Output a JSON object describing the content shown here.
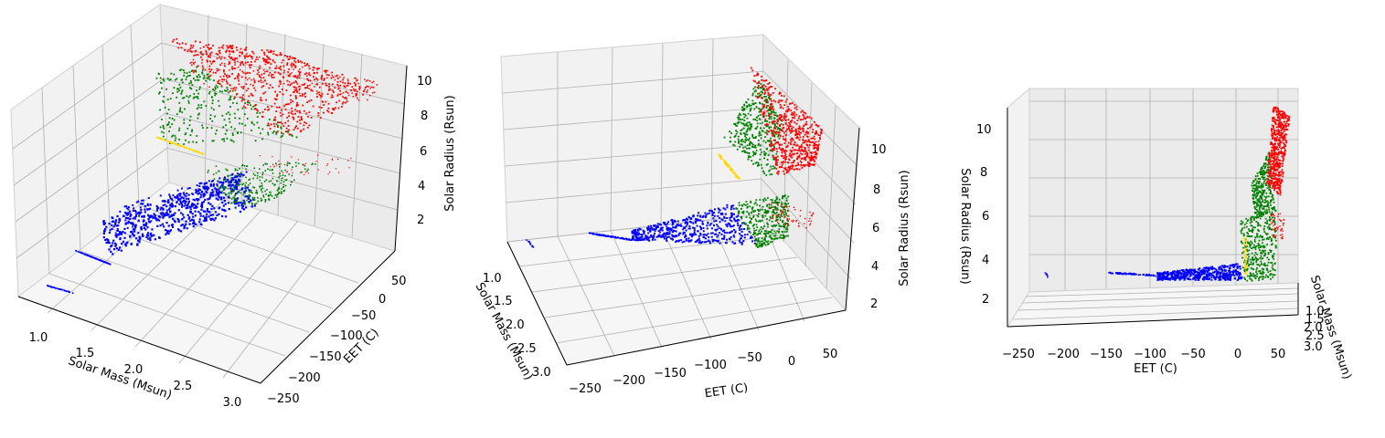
{
  "chart_data": [
    {
      "type": "scatter",
      "title": "",
      "xlabel": "Solar Mass (Msun)",
      "ylabel": "EET (C)",
      "zlabel": "Solar Radius (Rsun)",
      "xticks": [
        "1.0",
        "1.5",
        "2.0",
        "2.5",
        "3.0"
      ],
      "yticks": [
        "−250",
        "−200",
        "−150",
        "−100",
        "−50",
        "0",
        "50"
      ],
      "zticks": [
        "2",
        "4",
        "6",
        "8",
        "10"
      ],
      "xlim": [
        0.8,
        3.1
      ],
      "ylim": [
        -260,
        80
      ],
      "zlim": [
        0.5,
        11
      ],
      "grid": true,
      "legend": "none",
      "view": "oblique, viewed from the mass axis",
      "series_colors": [
        "#0000ff",
        "#008000",
        "#ff0000",
        "#ffd700"
      ]
    },
    {
      "type": "scatter",
      "title": "",
      "xlabel": "Solar Mass (Msun)",
      "ylabel": "EET (C)",
      "zlabel": "Solar Radius (Rsun)",
      "xticks": [
        "1.0",
        "1.5",
        "2.0",
        "2.5",
        "3.0"
      ],
      "yticks": [
        "−250",
        "−200",
        "−150",
        "−100",
        "−50",
        "0",
        "50"
      ],
      "zticks": [
        "2",
        "4",
        "6",
        "8",
        "10"
      ],
      "xlim": [
        0.8,
        3.1
      ],
      "ylim": [
        -260,
        80
      ],
      "zlim": [
        0.5,
        11
      ],
      "grid": true,
      "legend": "none",
      "view": "oblique, viewed from the temperature axis",
      "series_colors": [
        "#0000ff",
        "#008000",
        "#ff0000",
        "#ffd700"
      ]
    },
    {
      "type": "scatter",
      "title": "",
      "xlabel": "EET (C)",
      "ylabel": "Solar Mass (Msun)",
      "zlabel": "Solar Radius (Rsun)",
      "xticks": [
        "−250",
        "−200",
        "−150",
        "−100",
        "−50",
        "0",
        "50"
      ],
      "yticks": [
        "1.0",
        "1.5",
        "2.0",
        "2.5",
        "3.0"
      ],
      "zticks": [
        "2",
        "4",
        "6",
        "8",
        "10"
      ],
      "xlim": [
        -260,
        80
      ],
      "ylim": [
        0.8,
        3.1
      ],
      "zlim": [
        0.5,
        11
      ],
      "grid": true,
      "legend": "none",
      "view": "nearly edge-on, radius versus temperature",
      "series_colors": [
        "#0000ff",
        "#008000",
        "#ff0000",
        "#ffd700"
      ]
    }
  ]
}
